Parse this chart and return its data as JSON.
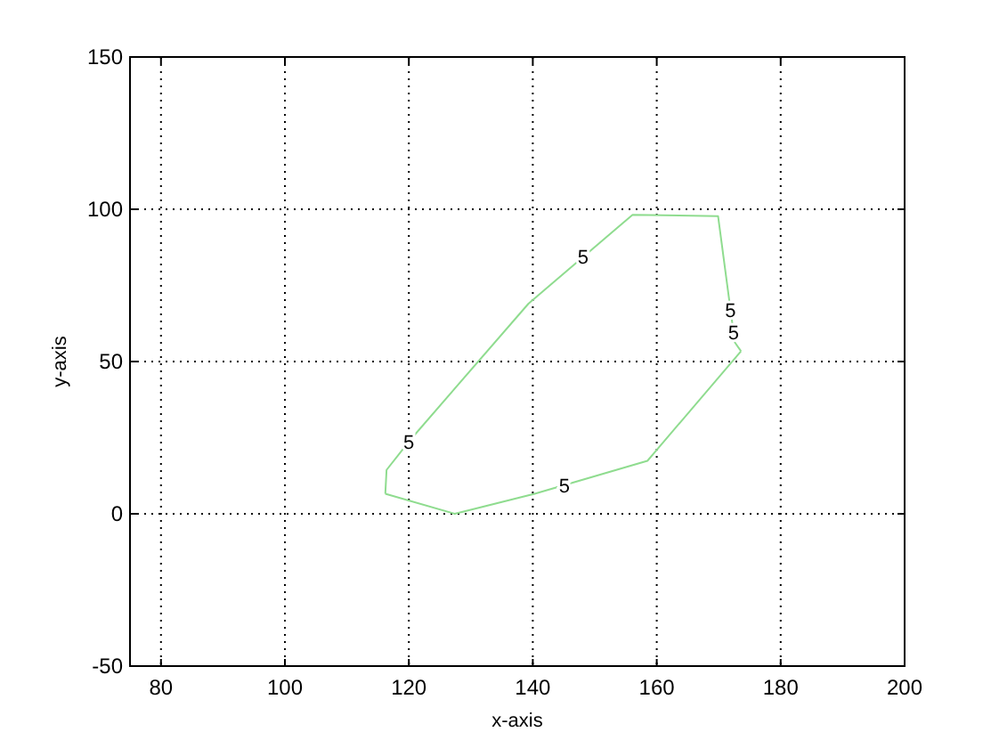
{
  "chart_data": {
    "type": "line",
    "xlabel": "x-axis",
    "ylabel": "y-axis",
    "series": [
      {
        "color": "#8fdc8f",
        "x": [
          116.2,
          116.4,
          120.2,
          139.3,
          156.1,
          169.9,
          172.6,
          173.6
        ],
        "values": [
          6.6,
          14.4,
          24.2,
          69,
          98.2,
          97.7,
          56.3,
          53.4
        ]
      },
      {
        "color": "#8fdc8f",
        "x": [
          116.2,
          127.4,
          140.3,
          158.5,
          173.6
        ],
        "values": [
          6.6,
          0,
          6.6,
          17.4,
          53.4
        ]
      }
    ],
    "annotations": [
      {
        "text": "5",
        "x": 148.1,
        "y": 84.3
      },
      {
        "text": "5",
        "x": 171.9,
        "y": 67
      },
      {
        "text": "5",
        "x": 172.4,
        "y": 59.6
      },
      {
        "text": "5",
        "x": 120,
        "y": 23.7
      },
      {
        "text": "5",
        "x": 145.1,
        "y": 9.4
      }
    ],
    "xlim": [
      75,
      200
    ],
    "ylim": [
      -50,
      150
    ],
    "xticks": [
      80,
      100,
      120,
      140,
      160,
      180,
      200
    ],
    "yticks": [
      -50,
      0,
      50,
      100,
      150
    ],
    "grid": true,
    "marker": "none",
    "line_style": "solid"
  }
}
